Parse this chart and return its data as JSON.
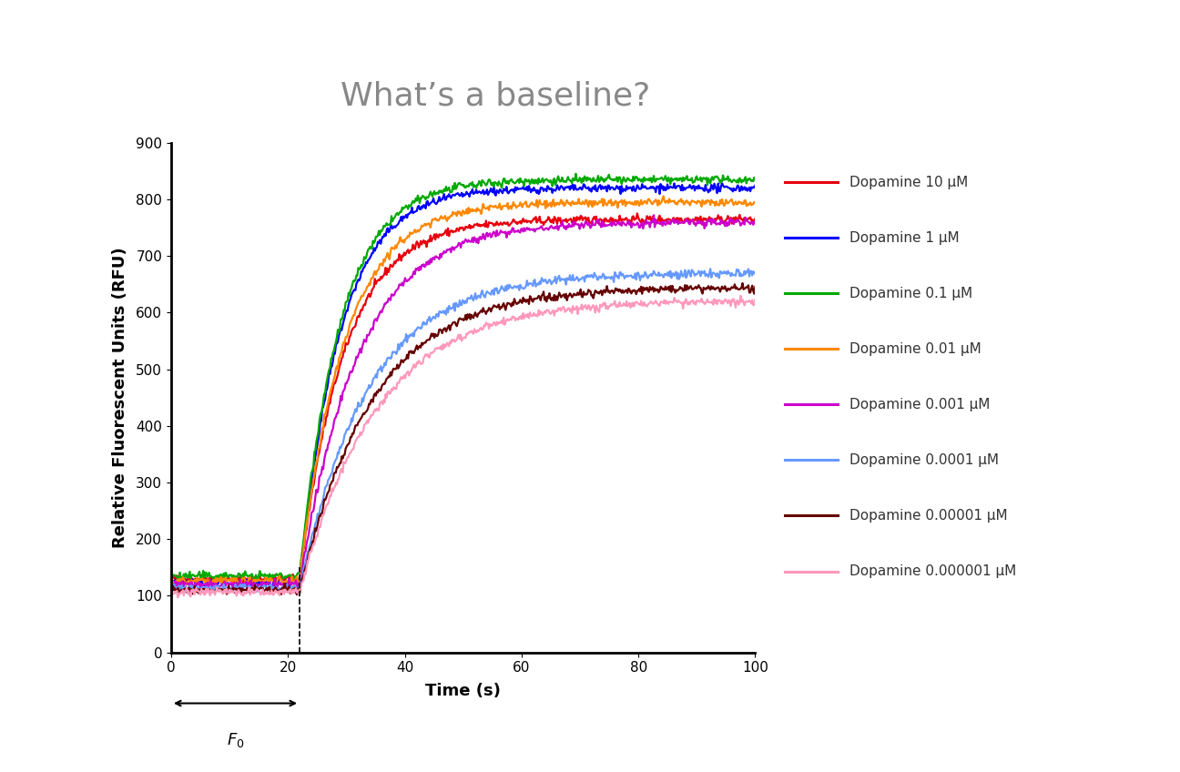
{
  "title": "What’s a baseline?",
  "xlabel": "Time (s)",
  "ylabel": "Relative Fluorescent Units (RFU)",
  "xlim": [
    0,
    100
  ],
  "ylim": [
    0,
    900
  ],
  "xticks": [
    0,
    20,
    40,
    60,
    80,
    100
  ],
  "yticks": [
    0,
    100,
    200,
    300,
    400,
    500,
    600,
    700,
    800,
    900
  ],
  "baseline_end": 22,
  "series": [
    {
      "label": "Dopamine 10 μM",
      "color": "#e8000d",
      "baseline": 130,
      "plateau": 765,
      "rise_speed": 0.13
    },
    {
      "label": "Dopamine 1 μM",
      "color": "#0000ff",
      "baseline": 122,
      "plateau": 820,
      "rise_speed": 0.145
    },
    {
      "label": "Dopamine 0.1 μM",
      "color": "#00aa00",
      "baseline": 135,
      "plateau": 835,
      "rise_speed": 0.145
    },
    {
      "label": "Dopamine 0.01 μM",
      "color": "#ff8800",
      "baseline": 127,
      "plateau": 795,
      "rise_speed": 0.13
    },
    {
      "label": "Dopamine 0.001 μM",
      "color": "#cc00cc",
      "baseline": 120,
      "plateau": 760,
      "rise_speed": 0.1
    },
    {
      "label": "Dopamine 0.0001 μM",
      "color": "#6699ff",
      "baseline": 114,
      "plateau": 670,
      "rise_speed": 0.085
    },
    {
      "label": "Dopamine 0.00001 μM",
      "color": "#660000",
      "baseline": 110,
      "plateau": 645,
      "rise_speed": 0.08
    },
    {
      "label": "Dopamine 0.000001 μM",
      "color": "#ff99bb",
      "baseline": 107,
      "plateau": 622,
      "rise_speed": 0.075
    }
  ],
  "fig_bg": "#ffffff",
  "plot_bg": "#ffffff",
  "header_bg": "#3a3a3a",
  "title_color": "#888888",
  "title_fontsize": 26,
  "axis_fontsize": 13,
  "tick_fontsize": 11,
  "legend_fontsize": 11,
  "line_width": 1.6,
  "noise_std": 3.5
}
